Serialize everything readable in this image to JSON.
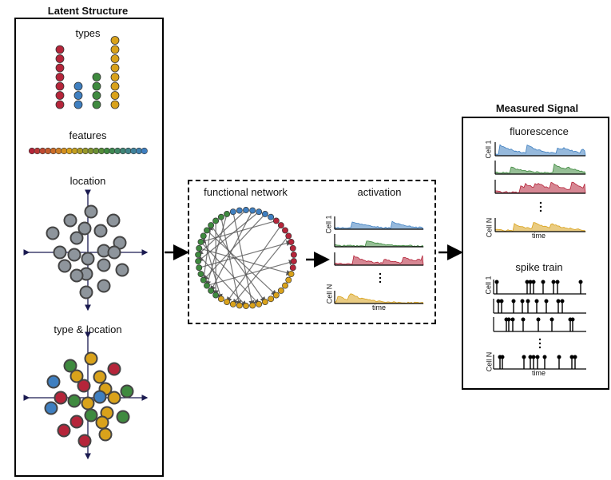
{
  "latent": {
    "title": "Latent Structure",
    "types_label": "types",
    "features_label": "features",
    "location_label": "location",
    "type_location_label": "type & location"
  },
  "network": {
    "title": "functional network",
    "activation_label": "activation",
    "cell1": "Cell 1",
    "cellN": "Cell N",
    "time": "time"
  },
  "measured": {
    "title": "Measured Signal",
    "fluorescence_label": "fluorescence",
    "spike_label": "spike train",
    "cell1": "Cell 1",
    "cellN": "Cell N",
    "time": "time"
  },
  "colors": {
    "red": "#b5253a",
    "blue": "#3f7fc0",
    "green": "#3f8a3f",
    "yellow": "#d9a21b",
    "gray": "#8e959c"
  }
}
